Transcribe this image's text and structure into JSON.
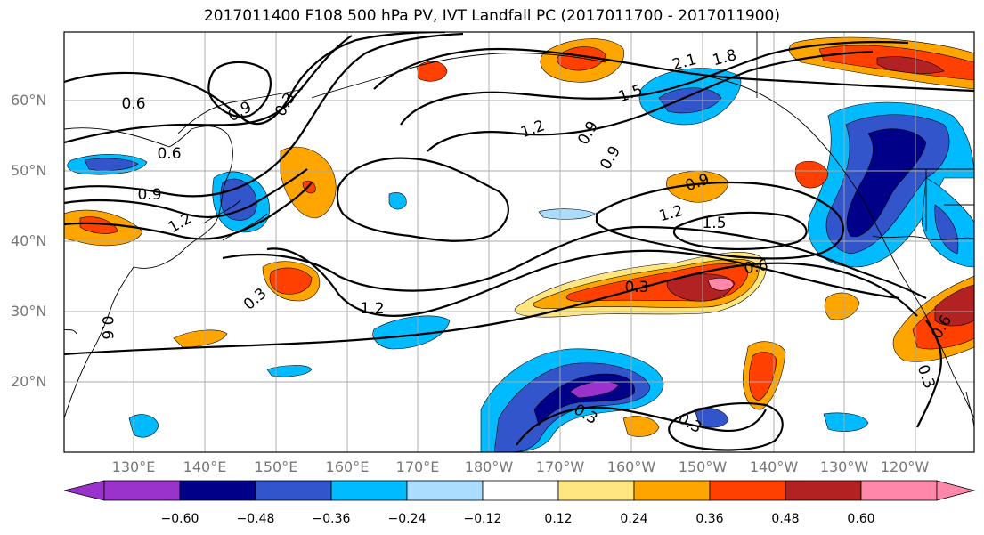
{
  "title": "2017011400 F108 500 hPa PV, IVT Landfall PC (2017011700 - 2017011900)",
  "lat_labels": [
    "60°N",
    "50°N",
    "40°N",
    "30°N",
    "20°N"
  ],
  "lon_labels": [
    "130°E",
    "140°E",
    "150°E",
    "160°E",
    "170°E",
    "180°W",
    "170°W",
    "160°W",
    "150°W",
    "140°W",
    "130°W",
    "120°W"
  ],
  "colorbar": {
    "ticks": [
      "−0.60",
      "−0.48",
      "−0.36",
      "−0.24",
      "−0.12",
      "0.12",
      "0.24",
      "0.36",
      "0.48",
      "0.60"
    ],
    "colors": [
      "#9933cc",
      "#000088",
      "#3355cc",
      "#00bbff",
      "#aaddff",
      "#ffffff",
      "#ffe680",
      "#ffa500",
      "#ff4000",
      "#b22222",
      "#ff88aa"
    ]
  },
  "contour_labels": [
    "0.6",
    "0.6",
    "0.9",
    "1.2",
    "0.3",
    "0.6",
    "0.9",
    "0.9",
    "1.2",
    "1.5",
    "2.1",
    "1.8",
    "0.9",
    "0.9",
    "1.2",
    "1.5",
    "0.6",
    "0.3",
    "1.2",
    "0.3",
    "0.3",
    "0.3",
    "0.6",
    "0.3"
  ]
}
